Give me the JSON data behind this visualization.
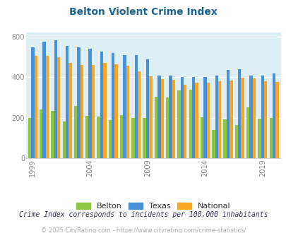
{
  "title": "Belton Violent Crime Index",
  "title_color": "#1a6496",
  "years": [
    1999,
    2000,
    2001,
    2002,
    2003,
    2004,
    2005,
    2006,
    2007,
    2008,
    2009,
    2010,
    2011,
    2012,
    2013,
    2014,
    2015,
    2016,
    2017,
    2018,
    2019,
    2020
  ],
  "belton": [
    200,
    242,
    235,
    183,
    258,
    210,
    208,
    190,
    212,
    200,
    200,
    305,
    300,
    335,
    340,
    202,
    140,
    193,
    165,
    252,
    197,
    200
  ],
  "texas": [
    548,
    575,
    582,
    554,
    548,
    542,
    528,
    520,
    510,
    510,
    490,
    408,
    408,
    403,
    400,
    403,
    410,
    437,
    440,
    408,
    408,
    420
  ],
  "national": [
    505,
    505,
    500,
    472,
    462,
    462,
    471,
    465,
    456,
    428,
    405,
    391,
    387,
    362,
    372,
    375,
    380,
    383,
    397,
    396,
    380,
    378
  ],
  "bar_colors": {
    "belton": "#8dc63f",
    "texas": "#4a90d9",
    "national": "#f5a623"
  },
  "bg_color": "#ddeef5",
  "fig_bg": "#ffffff",
  "xtick_labels": [
    "1999",
    "2004",
    "2009",
    "2014",
    "2019"
  ],
  "xtick_year_positions": [
    0,
    5,
    10,
    15,
    20
  ],
  "ylim": [
    0,
    620
  ],
  "yticks": [
    0,
    200,
    400,
    600
  ],
  "legend_labels": [
    "Belton",
    "Texas",
    "National"
  ],
  "footnote1": "Crime Index corresponds to incidents per 100,000 inhabitants",
  "footnote2": "© 2025 CityRating.com - https://www.cityrating.com/crime-statistics/",
  "footnote1_color": "#333355",
  "footnote2_color": "#aaaaaa",
  "grid_color": "#ffffff"
}
